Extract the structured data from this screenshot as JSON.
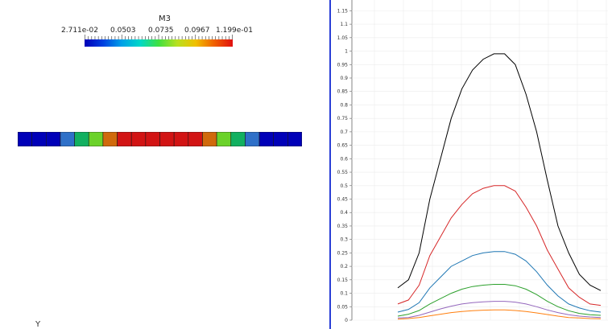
{
  "colorbar": {
    "title": "M3",
    "labels": [
      "2.711e-02",
      "0.0503",
      "0.0735",
      "0.0967",
      "1.199e-01"
    ],
    "colors": [
      "#0000b8",
      "#0040e0",
      "#00a0e8",
      "#00d8c8",
      "#40e040",
      "#b8e020",
      "#f0c000",
      "#f06000",
      "#e01010"
    ]
  },
  "bar_cells": {
    "colors": [
      "#0000b8",
      "#0000b8",
      "#0000b8",
      "#2f70c8",
      "#12b060",
      "#6bd22a",
      "#d06a0c",
      "#d21414",
      "#d21414",
      "#d21414",
      "#d21414",
      "#d21414",
      "#d21414",
      "#d06a0c",
      "#6bd22a",
      "#12b060",
      "#2f70c8",
      "#0000b8",
      "#0000b8",
      "#0000b8"
    ]
  },
  "axis_corner_label": "Y",
  "chart_data": {
    "type": "line",
    "ylim": [
      0,
      1.19
    ],
    "yticks": [
      "0",
      "0.05",
      "0.1",
      "0.15",
      "0.2",
      "0.25",
      "0.3",
      "0.35",
      "0.4",
      "0.45",
      "0.5",
      "0.55",
      "0.6",
      "0.65",
      "0.7",
      "0.75",
      "0.8",
      "0.85",
      "0.9",
      "0.95",
      "1",
      "1.05",
      "1.1",
      "1.15"
    ],
    "x": [
      0,
      1,
      2,
      3,
      4,
      5,
      6,
      7,
      8,
      9,
      10,
      11,
      12,
      13,
      14,
      15,
      16,
      17,
      18,
      19
    ],
    "grid": true,
    "series": [
      {
        "color": "#000000",
        "values": [
          0.12,
          0.15,
          0.25,
          0.45,
          0.6,
          0.75,
          0.86,
          0.93,
          0.97,
          0.99,
          0.99,
          0.95,
          0.84,
          0.7,
          0.52,
          0.35,
          0.25,
          0.17,
          0.13,
          0.11
        ]
      },
      {
        "color": "#d62728",
        "values": [
          0.06,
          0.075,
          0.13,
          0.24,
          0.31,
          0.38,
          0.43,
          0.47,
          0.49,
          0.5,
          0.5,
          0.48,
          0.42,
          0.35,
          0.26,
          0.19,
          0.12,
          0.085,
          0.06,
          0.055
        ]
      },
      {
        "color": "#1f77b4",
        "values": [
          0.03,
          0.04,
          0.065,
          0.12,
          0.16,
          0.2,
          0.22,
          0.24,
          0.25,
          0.255,
          0.255,
          0.245,
          0.22,
          0.18,
          0.13,
          0.09,
          0.06,
          0.045,
          0.035,
          0.03
        ]
      },
      {
        "color": "#2ca02c",
        "values": [
          0.015,
          0.022,
          0.036,
          0.06,
          0.08,
          0.1,
          0.115,
          0.125,
          0.13,
          0.133,
          0.133,
          0.128,
          0.115,
          0.095,
          0.07,
          0.05,
          0.035,
          0.025,
          0.02,
          0.018
        ]
      },
      {
        "color": "#9467bd",
        "values": [
          0.008,
          0.01,
          0.018,
          0.03,
          0.042,
          0.052,
          0.06,
          0.065,
          0.068,
          0.07,
          0.07,
          0.067,
          0.06,
          0.05,
          0.038,
          0.028,
          0.02,
          0.015,
          0.012,
          0.01
        ]
      },
      {
        "color": "#ff7f0e",
        "values": [
          0.004,
          0.006,
          0.01,
          0.016,
          0.022,
          0.028,
          0.032,
          0.035,
          0.037,
          0.038,
          0.038,
          0.036,
          0.032,
          0.027,
          0.021,
          0.015,
          0.01,
          0.008,
          0.006,
          0.005
        ]
      }
    ]
  }
}
